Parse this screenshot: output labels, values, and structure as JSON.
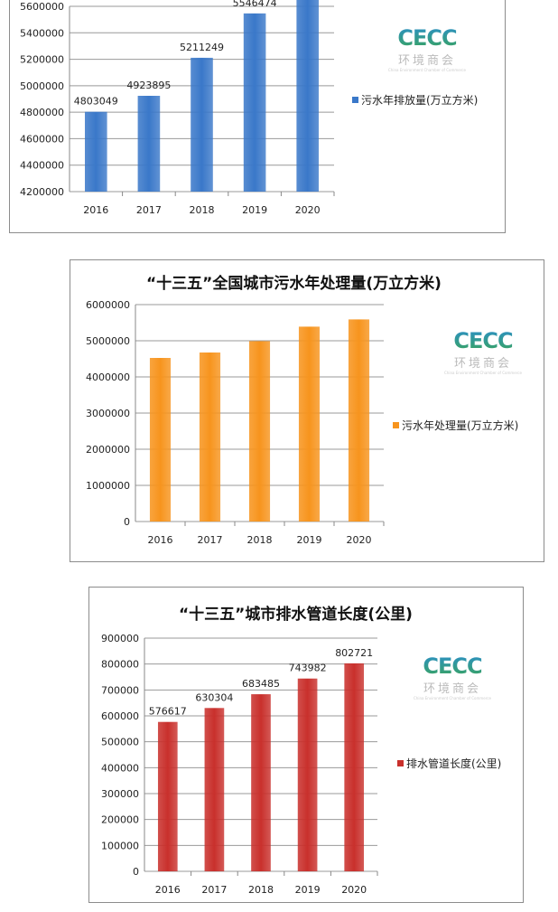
{
  "logo": {
    "text": "CECC",
    "subtitle": "环境商会",
    "tagline": "China Environment Chamber of Commerce"
  },
  "chart_data": [
    {
      "type": "bar",
      "title": "",
      "categories": [
        "2016",
        "2017",
        "2018",
        "2019",
        "2020"
      ],
      "series": [
        {
          "name": "污水年排放量(万立方米)",
          "values": [
            4803049,
            4923895,
            5211249,
            5546474,
            null
          ]
        }
      ],
      "data_labels": [
        "4803049",
        "4923895",
        "5211249",
        "5546474",
        ""
      ],
      "ylim": [
        4200000,
        5600000
      ],
      "yticks": [
        4200000,
        4400000,
        4600000,
        4800000,
        5000000,
        5200000,
        5400000,
        5600000
      ],
      "grid": true,
      "legend": "right",
      "color": "#3a78c9"
    },
    {
      "type": "bar",
      "title": "“十三五”全国城市污水年处理量(万立方米)",
      "categories": [
        "2016",
        "2017",
        "2018",
        "2019",
        "2020"
      ],
      "series": [
        {
          "name": "污水年处理量(万立方米)",
          "values": [
            4525000,
            4675000,
            4990000,
            5390000,
            5590000
          ]
        }
      ],
      "data_labels": [],
      "ylim": [
        0,
        6000000
      ],
      "yticks": [
        0,
        1000000,
        2000000,
        3000000,
        4000000,
        5000000,
        6000000
      ],
      "grid": true,
      "legend": "right",
      "color": "#f7941d"
    },
    {
      "type": "bar",
      "title": "“十三五”城市排水管道长度(公里)",
      "categories": [
        "2016",
        "2017",
        "2018",
        "2019",
        "2020"
      ],
      "series": [
        {
          "name": "排水管道长度(公里)",
          "values": [
            576617,
            630304,
            683485,
            743982,
            802721
          ]
        }
      ],
      "data_labels": [
        "576617",
        "630304",
        "683485",
        "743982",
        "802721"
      ],
      "ylim": [
        0,
        900000
      ],
      "yticks": [
        0,
        100000,
        200000,
        300000,
        400000,
        500000,
        600000,
        700000,
        800000,
        900000
      ],
      "grid": true,
      "legend": "right",
      "color": "#c9302c"
    }
  ]
}
